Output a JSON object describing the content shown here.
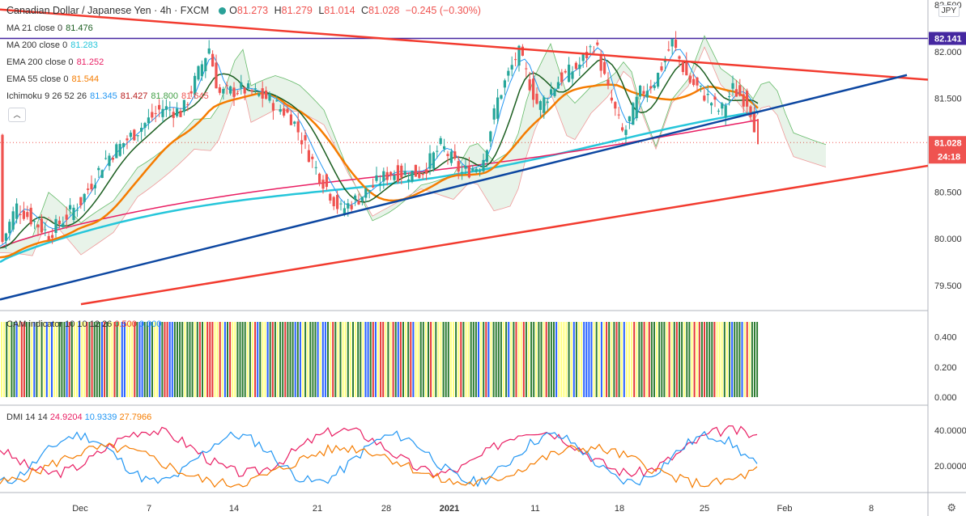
{
  "header": {
    "symbol": "Canadian Dollar / Japanese Yen · 4h · FXCM",
    "ohlc": {
      "open_label": "O",
      "open": "81.273",
      "high_label": "H",
      "high": "81.279",
      "low_label": "L",
      "low": "81.014",
      "close_label": "C",
      "close": "81.028",
      "change": "−0.245 (−0.30%)"
    }
  },
  "indicators": [
    {
      "name": "MA 21 close 0",
      "value": "81.476",
      "color": "#1b5e20"
    },
    {
      "name": "MA 200 close 0",
      "value": "81.283",
      "color": "#26c6da"
    },
    {
      "name": "EMA 200 close 0",
      "value": "81.252",
      "color": "#e91e63"
    },
    {
      "name": "EMA 55 close 0",
      "value": "81.544",
      "color": "#f57c00"
    }
  ],
  "ichimoku": {
    "name": "Ichimoku 9 26 52 26",
    "values": [
      {
        "v": "81.345",
        "color": "#2196f3"
      },
      {
        "v": "81.427",
        "color": "#b71c1c"
      },
      {
        "v": "81.800",
        "color": "#43a047"
      },
      {
        "v": "81.645",
        "color": "#ef5350"
      }
    ]
  },
  "price_axis": {
    "currency": "JPY",
    "ticks": [
      "82.500",
      "82.000",
      "81.500",
      "81.000",
      "80.500",
      "80.000",
      "79.500"
    ],
    "resistance_label": "82.141",
    "last_price_label": "81.028",
    "countdown": "24:18"
  },
  "cam_pane": {
    "label": "CAM indicator 10 10 12 26",
    "v1": "0.500",
    "v2": "0.000",
    "ticks": [
      "0.400",
      "0.200",
      "0.000"
    ]
  },
  "dmi_pane": {
    "label": "DMI 14 14",
    "plus": "24.9204",
    "minus": "10.9339",
    "adx": "27.7966",
    "ticks": [
      "40.0000",
      "20.0000"
    ]
  },
  "time_axis": {
    "labels": [
      "Dec",
      "7",
      "14",
      "21",
      "28",
      "2021",
      "11",
      "18",
      "25",
      "Feb",
      "8"
    ]
  },
  "chart_data": {
    "type": "candlestick",
    "title": "Canadian Dollar / Japanese Yen · 4h · FXCM",
    "ylim": [
      79.2,
      82.5
    ],
    "last_close": 81.028,
    "resistance_level": 82.141,
    "series": [
      {
        "name": "MA 21 close 0",
        "last": 81.476
      },
      {
        "name": "MA 200 close 0",
        "last": 81.283
      },
      {
        "name": "EMA 200 close 0",
        "last": 81.252
      },
      {
        "name": "EMA 55 close 0",
        "last": 81.544
      }
    ],
    "cam_ylim": [
      0,
      0.5
    ],
    "dmi": {
      "plus_di": 24.9204,
      "minus_di": 10.9339,
      "adx": 27.7966
    }
  },
  "colors": {
    "up": "#26a69a",
    "down": "#ef5350",
    "trend_red": "#f23b2f",
    "trend_blue": "#0d47a1",
    "resistance": "#4527a0",
    "cam_green": "#2e7d32",
    "cam_yellow": "#ffff80",
    "cam_blue": "#2962ff",
    "cam_red": "#e53935"
  }
}
